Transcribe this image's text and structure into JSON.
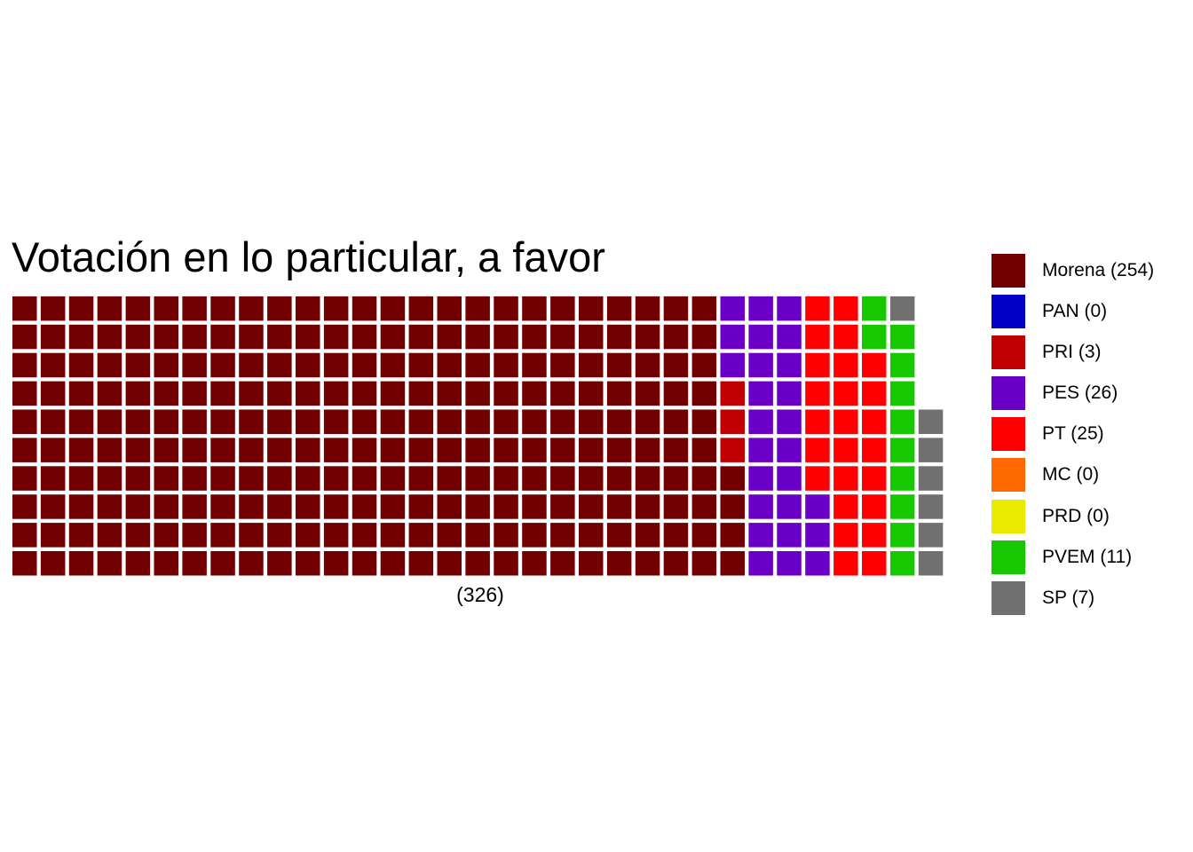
{
  "chart_data": {
    "type": "waffle",
    "title": "Votación en lo particular, a favor",
    "xlabel": "(326)",
    "total": 326,
    "rows": 10,
    "columns": 33,
    "fill_order": "column-wise, bottom-to-top, left-to-right",
    "series": [
      {
        "name": "Morena (254)",
        "party": "Morena",
        "value": 254,
        "color": "#730000"
      },
      {
        "name": "PAN (0)",
        "party": "PAN",
        "value": 0,
        "color": "#0000c8"
      },
      {
        "name": "PRI (3)",
        "party": "PRI",
        "value": 3,
        "color": "#c00000"
      },
      {
        "name": "PES (26)",
        "party": "PES",
        "value": 26,
        "color": "#6a00c8"
      },
      {
        "name": "PT (25)",
        "party": "PT",
        "value": 25,
        "color": "#ff0000"
      },
      {
        "name": "MC (0)",
        "party": "MC",
        "value": 0,
        "color": "#ff6a00"
      },
      {
        "name": "PRD (0)",
        "party": "PRD",
        "value": 0,
        "color": "#eaea00"
      },
      {
        "name": "PVEM (11)",
        "party": "PVEM",
        "value": 11,
        "color": "#17c800"
      },
      {
        "name": "SP (7)",
        "party": "SP",
        "value": 7,
        "color": "#707070"
      }
    ],
    "legend_position": "right"
  }
}
